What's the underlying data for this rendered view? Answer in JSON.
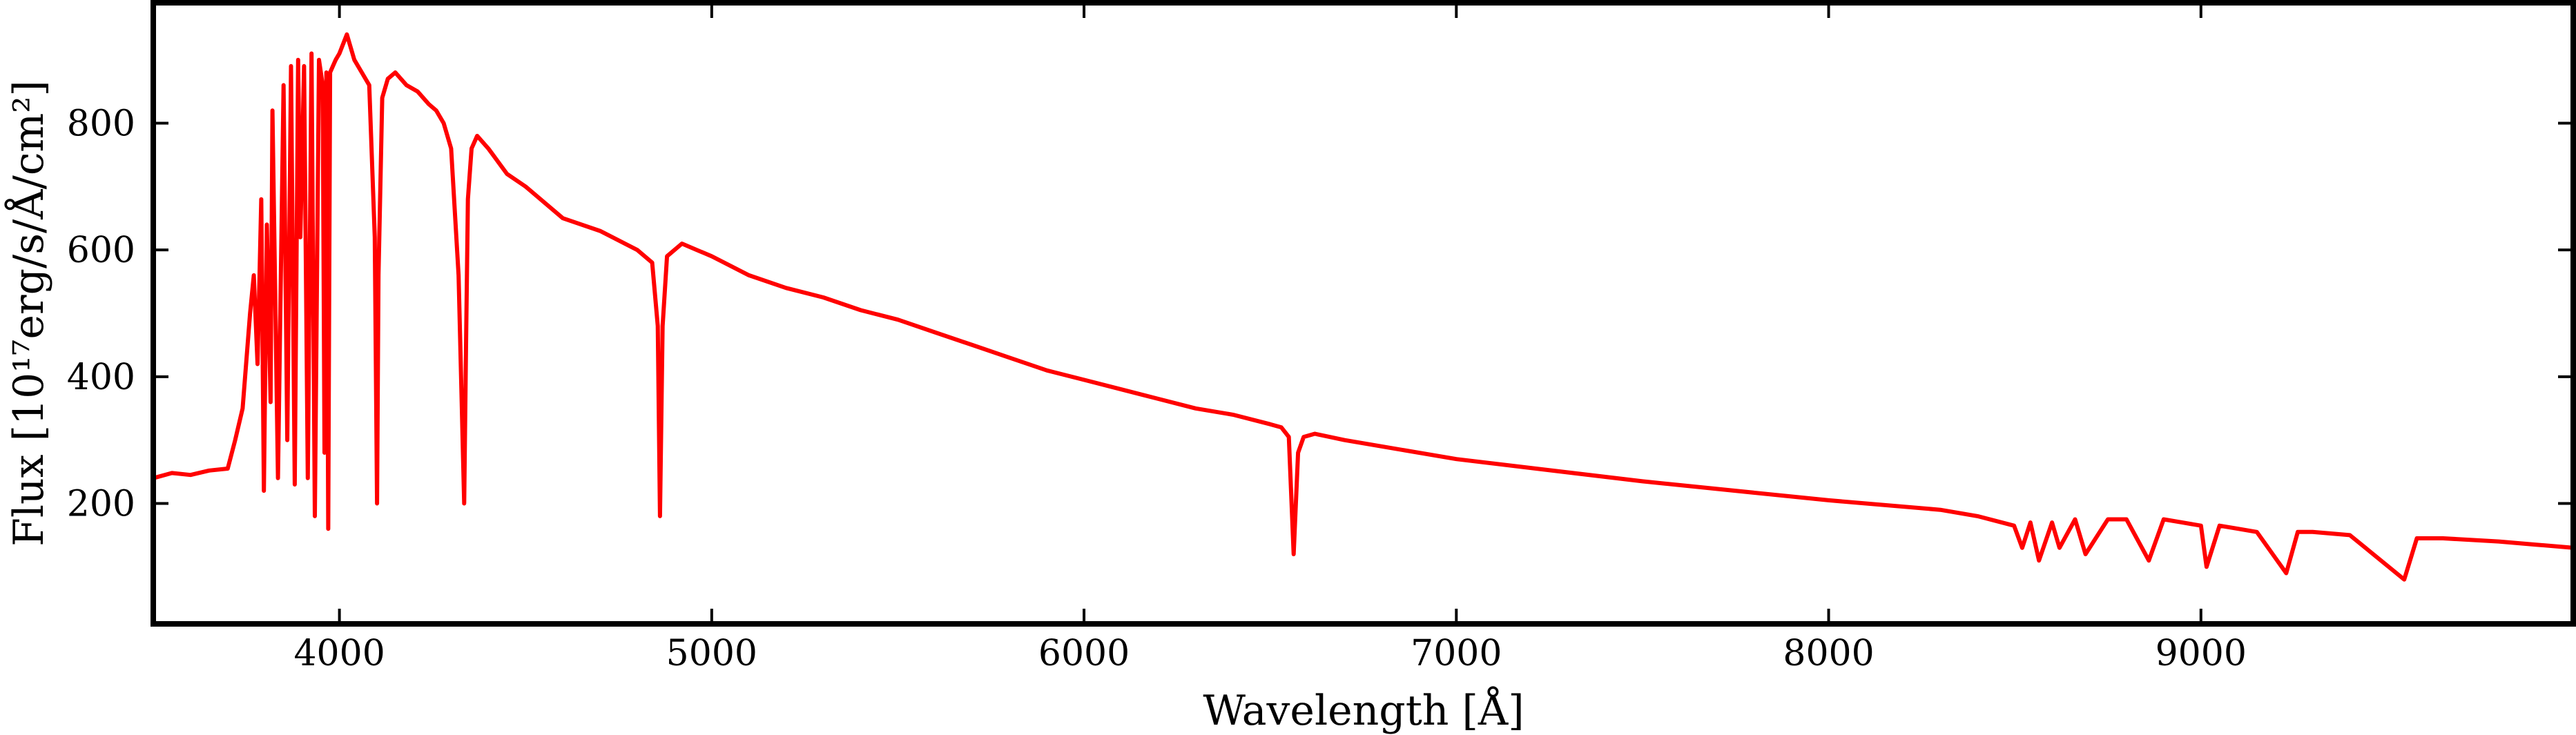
{
  "chart_data": {
    "type": "line",
    "title": "",
    "xlabel": "Wavelength [Å]",
    "ylabel": "Flux [10¹⁷erg/s/Å/cm²]",
    "xlim": [
      3500,
      10000
    ],
    "ylim": [
      10,
      990
    ],
    "xticks": [
      4000,
      5000,
      6000,
      7000,
      8000,
      9000
    ],
    "yticks": [
      200,
      400,
      600,
      800
    ],
    "grid": false,
    "legend": "none",
    "colors": {
      "series": "#ff0000",
      "axes": "#000000",
      "background": "#ffffff"
    },
    "series": [
      {
        "x": [
          3500,
          3550,
          3600,
          3650,
          3700,
          3720,
          3740,
          3760,
          3770,
          3780,
          3790,
          3797,
          3805,
          3815,
          3820,
          3835,
          3850,
          3860,
          3870,
          3880,
          3889,
          3895,
          3905,
          3915,
          3925,
          3934,
          3945,
          3955,
          3960,
          3965,
          3970,
          3975,
          3990,
          4000,
          4020,
          4030,
          4040,
          4060,
          4080,
          4095,
          4101,
          4105,
          4115,
          4130,
          4150,
          4180,
          4210,
          4240,
          4260,
          4280,
          4300,
          4320,
          4335,
          4340,
          4345,
          4355,
          4370,
          4400,
          4450,
          4500,
          4600,
          4700,
          4800,
          4840,
          4855,
          4861,
          4868,
          4880,
          4920,
          4960,
          5000,
          5100,
          5200,
          5300,
          5400,
          5500,
          5600,
          5700,
          5800,
          5900,
          6000,
          6100,
          6200,
          6300,
          6400,
          6500,
          6530,
          6550,
          6563,
          6575,
          6590,
          6620,
          6700,
          7000,
          7500,
          8000,
          8300,
          8400,
          8498,
          8520,
          8542,
          8565,
          8600,
          8620,
          8662,
          8690,
          8750,
          8800,
          8860,
          8900,
          8950,
          9000,
          9015,
          9050,
          9100,
          9150,
          9229,
          9260,
          9300,
          9400,
          9546,
          9580,
          9650,
          9800,
          9900,
          10000
        ],
        "y": [
          240,
          248,
          245,
          252,
          255,
          300,
          350,
          500,
          560,
          420,
          680,
          220,
          640,
          360,
          820,
          240,
          860,
          300,
          890,
          230,
          900,
          620,
          890,
          240,
          910,
          180,
          900,
          860,
          280,
          880,
          160,
          880,
          900,
          910,
          940,
          920,
          900,
          880,
          860,
          620,
          200,
          560,
          840,
          870,
          880,
          860,
          850,
          830,
          820,
          800,
          760,
          560,
          200,
          450,
          680,
          760,
          780,
          760,
          720,
          700,
          650,
          630,
          600,
          580,
          480,
          180,
          480,
          590,
          610,
          600,
          590,
          560,
          540,
          525,
          505,
          490,
          470,
          450,
          430,
          410,
          395,
          380,
          365,
          350,
          340,
          325,
          320,
          305,
          120,
          280,
          305,
          310,
          300,
          270,
          235,
          205,
          190,
          180,
          165,
          130,
          170,
          110,
          170,
          130,
          175,
          120,
          175,
          175,
          110,
          175,
          170,
          165,
          100,
          165,
          160,
          155,
          90,
          155,
          155,
          150,
          80,
          145,
          145,
          140,
          135,
          130
        ]
      }
    ]
  }
}
